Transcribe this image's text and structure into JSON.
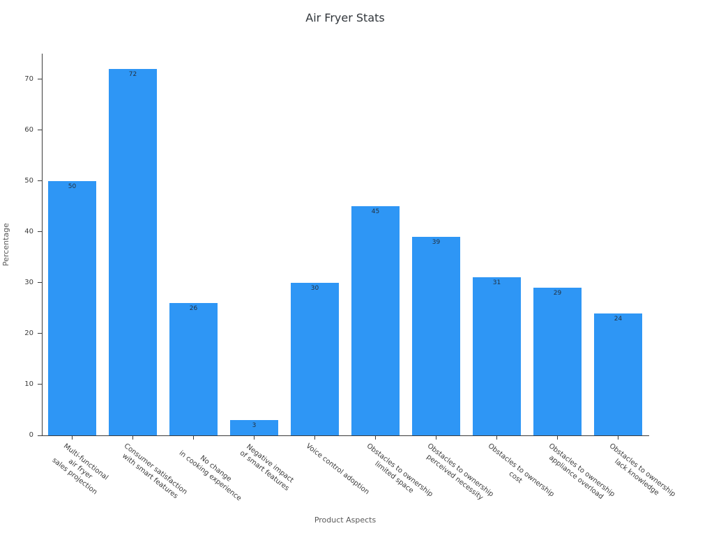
{
  "chart_data": {
    "type": "bar",
    "title": "Air Fryer Stats",
    "xlabel": "Product Aspects",
    "ylabel": "Percentage",
    "categories": [
      "Multi-functional\nair fryer\nsales projection",
      "Consumer satisfaction\nwith smart features",
      "No change\nin cooking experience",
      "Negative impact\nof smart features",
      "Voice control adoption",
      "Obstacles to ownership\nlimited space",
      "Obstacles to ownership\nperceived necessity",
      "Obstacles to ownership\ncost",
      "Obstacles to ownership\nappliance overload",
      "Obstacles to ownership\nlack knowledge"
    ],
    "values": [
      50,
      72,
      26,
      3,
      30,
      45,
      39,
      31,
      29,
      24
    ],
    "value_labels": [
      50,
      72,
      26,
      3,
      30,
      45,
      39,
      31,
      29,
      24
    ],
    "yticks": [
      0,
      10,
      20,
      30,
      40,
      50,
      60,
      70
    ],
    "ylim": [
      0,
      75
    ],
    "grid": false,
    "legend": "none",
    "bar_color": "#2E96F5"
  }
}
